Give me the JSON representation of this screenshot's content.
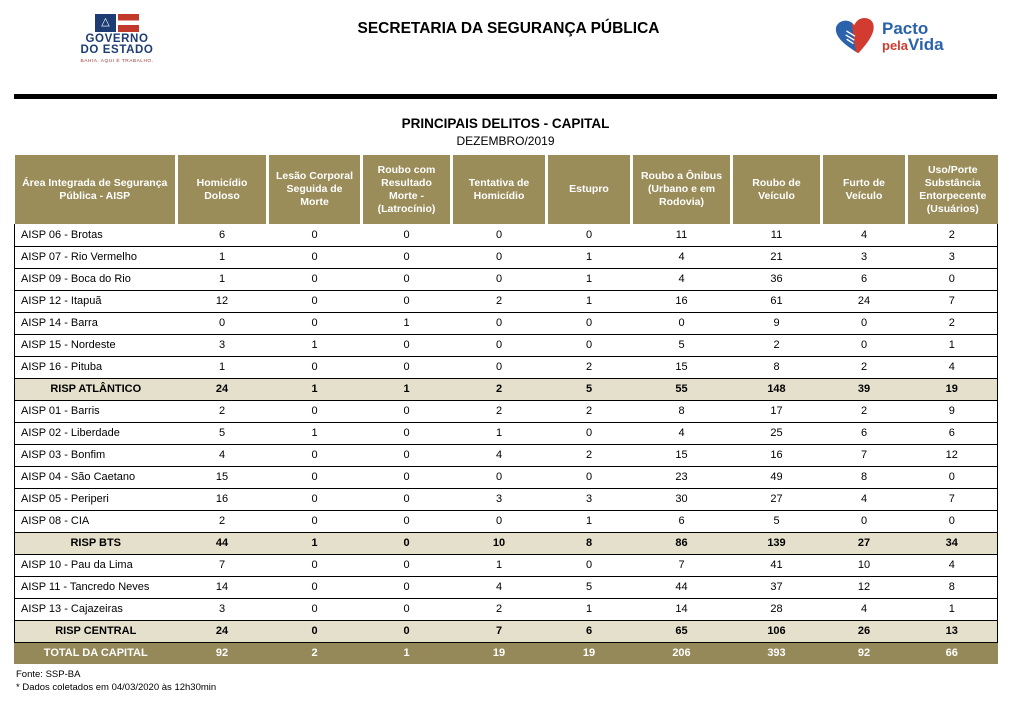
{
  "header": {
    "title": "SECRETARIA DA SEGURANÇA PÚBLICA",
    "gov_logo": {
      "line1": "GOVERNO",
      "line2": "DO ESTADO",
      "tagline": "BAHIA. AQUI É TRABALHO."
    },
    "pacto_logo": {
      "word1": "Pacto",
      "word2": "pela",
      "word3": "Vida"
    }
  },
  "icons": {
    "bahia_flag_triangle": "△"
  },
  "table": {
    "title": "PRINCIPAIS DELITOS - CAPITAL",
    "subtitle": "DEZEMBRO/2019",
    "columns": [
      "Área Integrada de Segurança Pública - AISP",
      "Homicídio Doloso",
      "Lesão Corporal Seguida de Morte",
      "Roubo com Resultado Morte - (Latrocínio)",
      "Tentativa de Homicídio",
      "Estupro",
      "Roubo a Ônibus (Urbano e em Rodovia)",
      "Roubo de Veículo",
      "Furto de Veículo",
      "Uso/Porte Substância Entorpecente (Usuários)"
    ],
    "rows": [
      {
        "type": "data",
        "label": "AISP 06 - Brotas",
        "values": [
          6,
          0,
          0,
          0,
          0,
          11,
          11,
          4,
          2
        ]
      },
      {
        "type": "data",
        "label": "AISP 07 - Rio Vermelho",
        "values": [
          1,
          0,
          0,
          0,
          1,
          4,
          21,
          3,
          3
        ]
      },
      {
        "type": "data",
        "label": "AISP 09 - Boca do Rio",
        "values": [
          1,
          0,
          0,
          0,
          1,
          4,
          36,
          6,
          0
        ]
      },
      {
        "type": "data",
        "label": "AISP 12 - Itapuã",
        "values": [
          12,
          0,
          0,
          2,
          1,
          16,
          61,
          24,
          7
        ]
      },
      {
        "type": "data",
        "label": "AISP 14 - Barra",
        "values": [
          0,
          0,
          1,
          0,
          0,
          0,
          9,
          0,
          2
        ]
      },
      {
        "type": "data",
        "label": "AISP 15 - Nordeste",
        "values": [
          3,
          1,
          0,
          0,
          0,
          5,
          2,
          0,
          1
        ]
      },
      {
        "type": "data",
        "label": "AISP 16 - Pituba",
        "values": [
          1,
          0,
          0,
          0,
          2,
          15,
          8,
          2,
          4
        ]
      },
      {
        "type": "summary",
        "label": "RISP ATLÂNTICO",
        "values": [
          24,
          1,
          1,
          2,
          5,
          55,
          148,
          39,
          19
        ]
      },
      {
        "type": "data",
        "label": "AISP 01 - Barris",
        "values": [
          2,
          0,
          0,
          2,
          2,
          8,
          17,
          2,
          9
        ]
      },
      {
        "type": "data",
        "label": "AISP 02 - Liberdade",
        "values": [
          5,
          1,
          0,
          1,
          0,
          4,
          25,
          6,
          6
        ]
      },
      {
        "type": "data",
        "label": "AISP 03 - Bonfim",
        "values": [
          4,
          0,
          0,
          4,
          2,
          15,
          16,
          7,
          12
        ]
      },
      {
        "type": "data",
        "label": "AISP 04 - São Caetano",
        "values": [
          15,
          0,
          0,
          0,
          0,
          23,
          49,
          8,
          0
        ]
      },
      {
        "type": "data",
        "label": "AISP 05 - Periperi",
        "values": [
          16,
          0,
          0,
          3,
          3,
          30,
          27,
          4,
          7
        ]
      },
      {
        "type": "data",
        "label": "AISP 08 - CIA",
        "values": [
          2,
          0,
          0,
          0,
          1,
          6,
          5,
          0,
          0
        ]
      },
      {
        "type": "summary",
        "label": "RISP BTS",
        "values": [
          44,
          1,
          0,
          10,
          8,
          86,
          139,
          27,
          34
        ]
      },
      {
        "type": "data",
        "label": "AISP 10 - Pau da Lima",
        "values": [
          7,
          0,
          0,
          1,
          0,
          7,
          41,
          10,
          4
        ]
      },
      {
        "type": "data",
        "label": "AISP 11 - Tancredo Neves",
        "values": [
          14,
          0,
          0,
          4,
          5,
          44,
          37,
          12,
          8
        ]
      },
      {
        "type": "data",
        "label": "AISP 13 - Cajazeiras",
        "values": [
          3,
          0,
          0,
          2,
          1,
          14,
          28,
          4,
          1
        ]
      },
      {
        "type": "summary",
        "label": "RISP CENTRAL",
        "values": [
          24,
          0,
          0,
          7,
          6,
          65,
          106,
          26,
          13
        ]
      },
      {
        "type": "total",
        "label": "TOTAL DA CAPITAL",
        "values": [
          92,
          2,
          1,
          19,
          19,
          206,
          393,
          92,
          66
        ]
      }
    ]
  },
  "footer": {
    "source": "Fonte: SSP-BA",
    "note": "* Dados coletados em 04/03/2020 às 12h30min"
  },
  "colors": {
    "header_olive": "#9B8D5A",
    "summary_beige": "#E5E0CB",
    "total_olive": "#95895A",
    "logo_navy": "#1D3C74",
    "logo_red": "#C0392B",
    "pacto_blue": "#2B62AC",
    "pacto_red": "#D13B30"
  }
}
